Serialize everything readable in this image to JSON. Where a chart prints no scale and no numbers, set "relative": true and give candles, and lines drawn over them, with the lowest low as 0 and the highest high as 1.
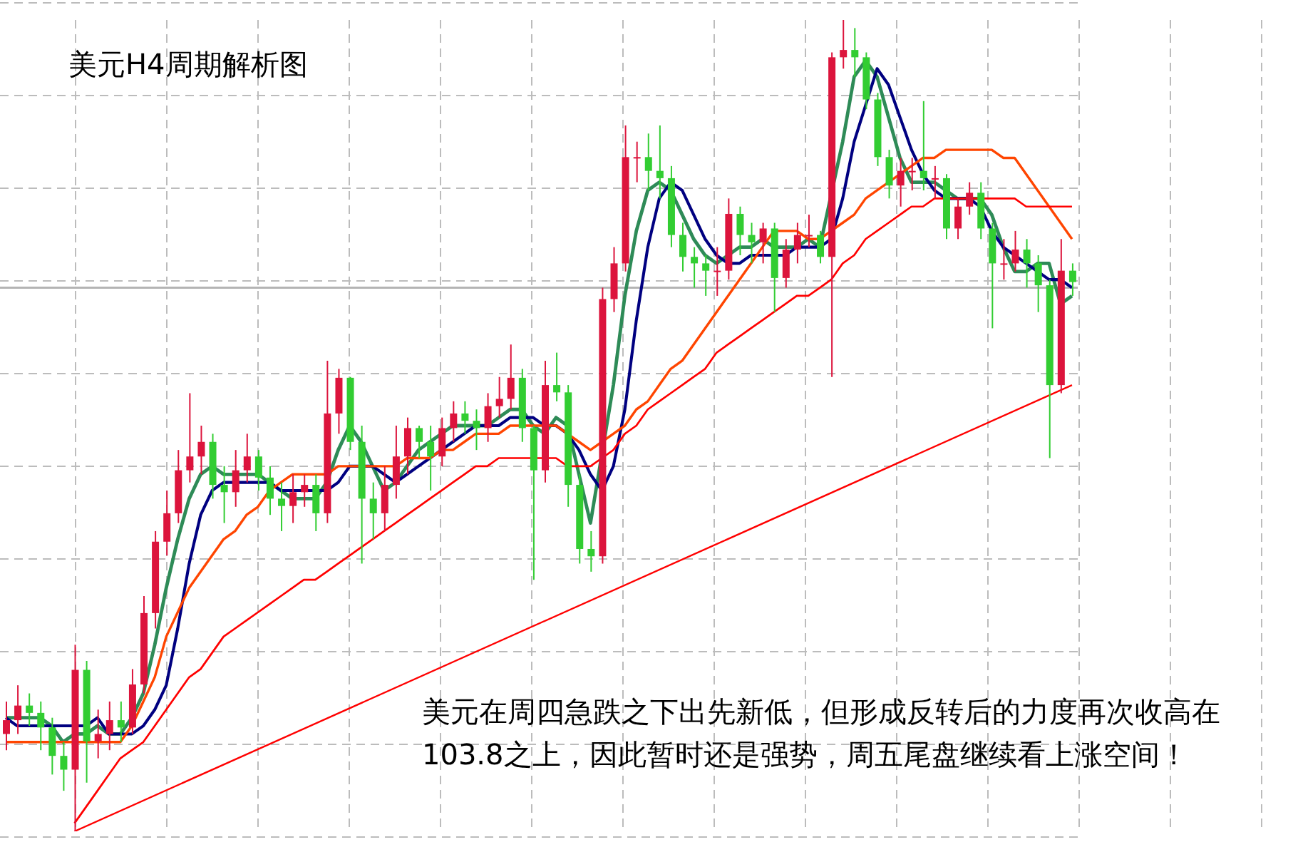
{
  "chart_data": {
    "type": "candlestick",
    "title": "美元H4周期解析图",
    "relative": true,
    "grid": true,
    "annotations": [
      "美元在周四急跌之下出先新低，但形成反转后的力度再次收高在103.8之上，因此暂时还是强势，周五尾盘继续看上涨空间！"
    ],
    "categories": [
      null,
      null,
      null,
      null,
      null,
      null,
      null,
      null,
      null,
      null,
      null,
      null,
      null,
      null,
      null,
      null,
      null,
      null,
      null,
      null,
      null,
      null,
      null,
      null,
      null,
      null,
      null,
      null,
      null,
      null,
      null,
      null,
      null,
      null,
      null,
      null,
      null,
      null,
      null,
      null,
      null,
      null,
      null,
      null,
      null,
      null,
      null,
      null,
      null,
      null,
      null,
      null,
      null,
      null,
      null,
      null,
      null,
      null,
      null,
      null,
      null,
      null,
      null,
      null,
      null,
      null,
      null,
      null,
      null,
      null,
      null,
      null,
      null,
      null,
      null,
      null,
      null,
      null,
      null,
      null,
      null,
      null,
      null,
      null,
      null,
      null,
      null,
      null,
      null,
      null,
      null,
      null,
      null,
      null
    ],
    "ohlc": [
      [
        0.12,
        0.16,
        0.1,
        0.137
      ],
      [
        0.137,
        0.18,
        0.12,
        0.155
      ],
      [
        0.155,
        0.17,
        0.13,
        0.146
      ],
      [
        0.146,
        0.16,
        0.1,
        0.128
      ],
      [
        0.128,
        0.14,
        0.07,
        0.093
      ],
      [
        0.093,
        0.11,
        0.05,
        0.076
      ],
      [
        0.076,
        0.23,
        0,
        0.199
      ],
      [
        0.199,
        0.21,
        0.06,
        0.111
      ],
      [
        0.111,
        0.15,
        0.09,
        0.12
      ],
      [
        0.12,
        0.16,
        0.1,
        0.137
      ],
      [
        0.137,
        0.16,
        0.11,
        0.128
      ],
      [
        0.128,
        0.2,
        0.12,
        0.181
      ],
      [
        0.181,
        0.29,
        0.17,
        0.269
      ],
      [
        0.269,
        0.37,
        0.25,
        0.357
      ],
      [
        0.357,
        0.42,
        0.34,
        0.392
      ],
      [
        0.392,
        0.47,
        0.38,
        0.445
      ],
      [
        0.445,
        0.54,
        0.43,
        0.462
      ],
      [
        0.462,
        0.5,
        0.44,
        0.48
      ],
      [
        0.48,
        0.49,
        0.41,
        0.427
      ],
      [
        0.427,
        0.45,
        0.38,
        0.418
      ],
      [
        0.418,
        0.47,
        0.4,
        0.445
      ],
      [
        0.445,
        0.49,
        0.43,
        0.462
      ],
      [
        0.462,
        0.47,
        0.42,
        0.436
      ],
      [
        0.436,
        0.45,
        0.39,
        0.41
      ],
      [
        0.41,
        0.43,
        0.37,
        0.401
      ],
      [
        0.401,
        0.44,
        0.38,
        0.418
      ],
      [
        0.418,
        0.44,
        0.4,
        0.427
      ],
      [
        0.427,
        0.44,
        0.37,
        0.392
      ],
      [
        0.392,
        0.58,
        0.38,
        0.515
      ],
      [
        0.515,
        0.57,
        0.49,
        0.559
      ],
      [
        0.559,
        0.56,
        0.47,
        0.48
      ],
      [
        0.48,
        0.5,
        0.33,
        0.41
      ],
      [
        0.41,
        0.43,
        0.36,
        0.392
      ],
      [
        0.392,
        0.45,
        0.37,
        0.427
      ],
      [
        0.427,
        0.5,
        0.41,
        0.462
      ],
      [
        0.462,
        0.51,
        0.44,
        0.497
      ],
      [
        0.497,
        0.5,
        0.46,
        0.48
      ],
      [
        0.48,
        0.5,
        0.42,
        0.462
      ],
      [
        0.462,
        0.51,
        0.45,
        0.497
      ],
      [
        0.497,
        0.53,
        0.48,
        0.515
      ],
      [
        0.515,
        0.53,
        0.49,
        0.506
      ],
      [
        0.506,
        0.52,
        0.47,
        0.497
      ],
      [
        0.497,
        0.54,
        0.48,
        0.524
      ],
      [
        0.524,
        0.56,
        0.51,
        0.533
      ],
      [
        0.533,
        0.6,
        0.52,
        0.559
      ],
      [
        0.559,
        0.57,
        0.48,
        0.497
      ],
      [
        0.497,
        0.5,
        0.31,
        0.445
      ],
      [
        0.445,
        0.58,
        0.43,
        0.55
      ],
      [
        0.55,
        0.59,
        0.53,
        0.541
      ],
      [
        0.541,
        0.55,
        0.4,
        0.427
      ],
      [
        0.427,
        0.44,
        0.33,
        0.348
      ],
      [
        0.348,
        0.37,
        0.32,
        0.339
      ],
      [
        0.339,
        0.67,
        0.33,
        0.656
      ],
      [
        0.656,
        0.72,
        0.64,
        0.7
      ],
      [
        0.7,
        0.87,
        0.69,
        0.831
      ],
      [
        0.831,
        0.85,
        0.8,
        0.831
      ],
      [
        0.831,
        0.86,
        0.79,
        0.814
      ],
      [
        0.814,
        0.87,
        0.78,
        0.805
      ],
      [
        0.805,
        0.82,
        0.72,
        0.735
      ],
      [
        0.735,
        0.75,
        0.69,
        0.708
      ],
      [
        0.708,
        0.72,
        0.67,
        0.7
      ],
      [
        0.7,
        0.71,
        0.66,
        0.691
      ],
      [
        0.691,
        0.72,
        0.66,
        0.691
      ],
      [
        0.691,
        0.78,
        0.68,
        0.761
      ],
      [
        0.761,
        0.77,
        0.71,
        0.735
      ],
      [
        0.735,
        0.75,
        0.7,
        0.726
      ],
      [
        0.726,
        0.75,
        0.7,
        0.743
      ],
      [
        0.743,
        0.75,
        0.64,
        0.682
      ],
      [
        0.682,
        0.73,
        0.67,
        0.717
      ],
      [
        0.717,
        0.75,
        0.7,
        0.735
      ],
      [
        0.735,
        0.76,
        0.72,
        0.735
      ],
      [
        0.735,
        0.74,
        0.7,
        0.708
      ],
      [
        0.708,
        0.96,
        0.56,
        0.954
      ],
      [
        0.954,
        1,
        0.94,
        0.963
      ],
      [
        0.963,
        0.99,
        0.93,
        0.954
      ],
      [
        0.954,
        0.96,
        0.89,
        0.902
      ],
      [
        0.902,
        0.91,
        0.82,
        0.831
      ],
      [
        0.831,
        0.84,
        0.78,
        0.796
      ],
      [
        0.796,
        0.83,
        0.77,
        0.814
      ],
      [
        0.814,
        0.83,
        0.79,
        0.814
      ],
      [
        0.814,
        0.9,
        0.79,
        0.805
      ],
      [
        0.805,
        0.82,
        0.78,
        0.805
      ],
      [
        0.805,
        0.81,
        0.73,
        0.743
      ],
      [
        0.743,
        0.78,
        0.73,
        0.77
      ],
      [
        0.77,
        0.8,
        0.76,
        0.787
      ],
      [
        0.787,
        0.8,
        0.73,
        0.743
      ],
      [
        0.743,
        0.75,
        0.62,
        0.7
      ],
      [
        0.7,
        0.73,
        0.68,
        0.7
      ],
      [
        0.7,
        0.74,
        0.69,
        0.717
      ],
      [
        0.717,
        0.73,
        0.67,
        0.7
      ],
      [
        0.7,
        0.71,
        0.64,
        0.673
      ],
      [
        0.673,
        0.68,
        0.46,
        0.55
      ],
      [
        0.55,
        0.73,
        0.54,
        0.691
      ],
      [
        0.691,
        0.7,
        0.66,
        0.677
      ]
    ],
    "series": [
      {
        "type": "line",
        "color": "#2e8b57",
        "values": [
          0.14,
          0.14,
          0.14,
          0.14,
          0.13,
          0.11,
          0.12,
          0.12,
          0.13,
          0.12,
          0.12,
          0.14,
          0.17,
          0.23,
          0.3,
          0.36,
          0.41,
          0.44,
          0.45,
          0.44,
          0.44,
          0.44,
          0.44,
          0.43,
          0.42,
          0.41,
          0.41,
          0.41,
          0.43,
          0.47,
          0.5,
          0.48,
          0.45,
          0.42,
          0.43,
          0.45,
          0.47,
          0.48,
          0.49,
          0.5,
          0.5,
          0.5,
          0.5,
          0.51,
          0.52,
          0.52,
          0.5,
          0.49,
          0.51,
          0.5,
          0.44,
          0.38,
          null,
          0.55,
          0.66,
          0.74,
          0.79,
          0.8,
          0.79,
          0.76,
          0.73,
          0.71,
          0.7,
          0.71,
          0.72,
          0.72,
          0.73,
          0.72,
          0.72,
          0.72,
          0.73,
          0.72,
          null,
          0.85,
          0.93,
          0.95,
          0.93,
          0.88,
          0.83,
          0.8,
          0.8,
          0.8,
          0.79,
          0.78,
          0.78,
          0.78,
          0.76,
          0.72,
          0.69,
          0.69,
          0.7,
          0.7,
          0.65,
          0.66
        ]
      },
      {
        "type": "line",
        "color": "#000080",
        "values": [
          0.14,
          0.13,
          0.13,
          0.13,
          0.13,
          0.13,
          0.13,
          0.13,
          0.14,
          0.12,
          0.12,
          0.12,
          0.13,
          0.15,
          0.18,
          0.25,
          0.33,
          0.39,
          0.42,
          0.43,
          0.43,
          0.43,
          0.43,
          0.43,
          0.42,
          0.42,
          0.42,
          0.42,
          0.42,
          0.43,
          0.45,
          0.45,
          0.45,
          0.44,
          0.43,
          0.44,
          0.45,
          0.46,
          0.47,
          0.48,
          0.49,
          0.5,
          0.5,
          0.5,
          0.51,
          0.51,
          0.51,
          0.5,
          0.5,
          0.49,
          0.47,
          0.44,
          0.42,
          0.45,
          0.52,
          0.63,
          0.72,
          0.78,
          0.8,
          0.79,
          0.76,
          0.73,
          0.71,
          0.7,
          0.7,
          0.71,
          0.71,
          0.71,
          0.71,
          0.72,
          0.72,
          0.72,
          0.73,
          0.78,
          0.85,
          null,
          0.94,
          0.92,
          0.88,
          0.84,
          0.81,
          0.79,
          0.78,
          0.78,
          0.78,
          0.77,
          0.74,
          0.72,
          0.71,
          0.7,
          0.69,
          0.68,
          0.68,
          0.67
        ]
      },
      {
        "type": "line",
        "color": "#ff4500",
        "values": [
          0.11,
          0.11,
          0.11,
          0.11,
          0.11,
          0.11,
          0.11,
          0.11,
          0.11,
          0.11,
          0.11,
          0.13,
          0.16,
          0.19,
          0.24,
          0.27,
          0.3,
          0.32,
          0.34,
          0.36,
          0.37,
          0.39,
          0.4,
          0.42,
          0.43,
          0.44,
          0.44,
          0.44,
          0.44,
          0.45,
          0.45,
          0.45,
          0.45,
          0.45,
          0.45,
          0.46,
          0.46,
          0.46,
          0.47,
          0.47,
          0.48,
          0.49,
          0.49,
          0.49,
          0.5,
          0.5,
          0.5,
          0.5,
          0.5,
          0.49,
          0.48,
          0.47,
          0.48,
          0.49,
          0.5,
          0.52,
          0.53,
          0.55,
          0.57,
          0.58,
          0.6,
          0.62,
          0.64,
          0.66,
          0.68,
          0.7,
          0.72,
          0.74,
          0.74,
          0.74,
          0.73,
          0.73,
          0.74,
          0.75,
          0.76,
          0.78,
          0.79,
          0.8,
          0.81,
          0.82,
          0.83,
          0.83,
          0.84,
          0.84,
          0.84,
          0.84,
          0.84,
          0.83,
          0.83,
          0.81,
          0.79,
          0.77,
          0.75,
          0.73
        ]
      },
      {
        "type": "line",
        "color": "#ff0000",
        "values": [
          null,
          null,
          null,
          null,
          null,
          null,
          0.01,
          0.03,
          0.05,
          0.07,
          0.09,
          0.1,
          0.11,
          0.13,
          0.15,
          0.17,
          0.19,
          0.2,
          0.22,
          0.24,
          0.25,
          0.26,
          0.27,
          0.28,
          0.29,
          0.3,
          0.31,
          0.31,
          0.32,
          0.33,
          0.34,
          0.35,
          0.36,
          0.37,
          0.38,
          0.39,
          0.4,
          0.41,
          0.42,
          0.43,
          0.44,
          0.45,
          0.45,
          0.46,
          0.46,
          0.46,
          0.46,
          0.46,
          0.46,
          0.45,
          0.45,
          0.45,
          0.46,
          0.47,
          0.49,
          0.5,
          0.52,
          0.53,
          0.54,
          0.55,
          0.56,
          0.57,
          0.59,
          0.6,
          0.61,
          0.62,
          0.63,
          0.64,
          0.65,
          0.66,
          0.66,
          0.67,
          0.68,
          0.7,
          0.71,
          0.73,
          0.74,
          0.75,
          0.76,
          0.77,
          0.77,
          0.78,
          0.78,
          0.78,
          0.78,
          0.78,
          0.78,
          0.78,
          0.78,
          0.77,
          0.77,
          0.77,
          0.77,
          0.77
        ]
      },
      {
        "type": "line",
        "color": "#ff0000",
        "values": [
          null,
          null,
          null,
          null,
          null,
          null,
          0,
          null,
          null,
          null,
          null,
          null,
          null,
          null,
          null,
          null,
          null,
          null,
          null,
          null,
          null,
          null,
          null,
          null,
          null,
          null,
          null,
          null,
          null,
          null,
          null,
          null,
          null,
          null,
          null,
          null,
          null,
          null,
          null,
          null,
          null,
          null,
          null,
          null,
          null,
          null,
          null,
          null,
          null,
          null,
          null,
          null,
          null,
          null,
          null,
          null,
          null,
          null,
          null,
          null,
          null,
          null,
          null,
          null,
          null,
          null,
          null,
          null,
          null,
          null,
          null,
          null,
          null,
          null,
          null,
          null,
          null,
          null,
          null,
          null,
          null,
          null,
          null,
          null,
          null,
          null,
          null,
          null,
          null,
          null,
          null,
          null,
          null,
          0.55
        ]
      }
    ],
    "ref_lines": [
      {
        "axis": "y",
        "value": 0.67,
        "color": "#b4b4b4"
      }
    ]
  }
}
